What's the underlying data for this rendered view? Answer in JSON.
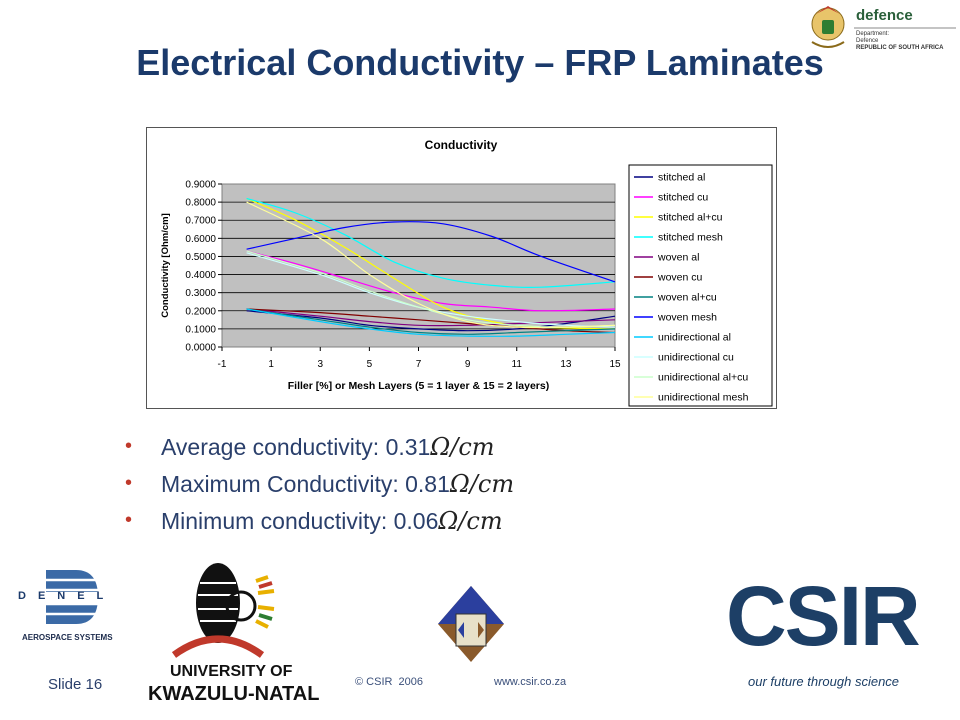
{
  "slide": {
    "title": "Electrical Conductivity – FRP Laminates",
    "bullets": [
      {
        "text": "Average conductivity: 0.31",
        "unit": "Ω/cm"
      },
      {
        "text": "Maximum Conductivity: 0.81",
        "unit": "Ω/cm"
      },
      {
        "text": "Minimum conductivity: 0.06",
        "unit": "Ω/cm"
      }
    ],
    "slide_number": "Slide 16",
    "copyright": "© CSIR  2006",
    "website": "www.csir.co.za"
  },
  "logos": {
    "defence": {
      "name": "defence",
      "line1": "Department:",
      "line2": "Defence",
      "line3": "REPUBLIC OF SOUTH AFRICA"
    },
    "denel": {
      "name": "DENEL",
      "sub": "AEROSPACE SYSTEMS"
    },
    "ukzn": {
      "line1": "UNIVERSITY OF",
      "line2": "KWAZULU-NATAL"
    },
    "csir": {
      "name": "CSIR",
      "tagline": "our future through science"
    }
  },
  "colors": {
    "title": "#1b3a6b",
    "bullet_text": "#2a3f6b",
    "bullet_dot": "#c0392b",
    "plot_bg": "#c0c0c0",
    "csir_blue": "#1d3f66"
  },
  "chart_data": {
    "type": "line",
    "title": "Conductivity",
    "xlabel": "Filler [%] or Mesh Layers (5 = 1 layer & 15 = 2 layers)",
    "ylabel": "Conductivity [Ohm/cm]",
    "xlim": [
      -1,
      15
    ],
    "ylim": [
      0,
      0.9
    ],
    "x_ticks": [
      "-1",
      "1",
      "3",
      "5",
      "7",
      "9",
      "11",
      "13",
      "15"
    ],
    "y_ticks": [
      "0.0000",
      "0.1000",
      "0.2000",
      "0.3000",
      "0.4000",
      "0.5000",
      "0.6000",
      "0.7000",
      "0.8000",
      "0.9000"
    ],
    "grid": "horizontal",
    "legend_position": "right",
    "series": [
      {
        "name": "stitched al",
        "color": "#000080",
        "x": [
          0,
          3,
          5,
          7,
          9,
          11,
          13,
          15
        ],
        "y": [
          0.2,
          0.16,
          0.12,
          0.1,
          0.09,
          0.1,
          0.13,
          0.17
        ]
      },
      {
        "name": "stitched cu",
        "color": "#ff00ff",
        "x": [
          0,
          2,
          4,
          6,
          8,
          10,
          12,
          15
        ],
        "y": [
          0.53,
          0.46,
          0.38,
          0.3,
          0.24,
          0.22,
          0.2,
          0.21
        ]
      },
      {
        "name": "stitched al+cu",
        "color": "#ffff00",
        "x": [
          0,
          2,
          4,
          6,
          8,
          10,
          12,
          15
        ],
        "y": [
          0.82,
          0.7,
          0.55,
          0.38,
          0.22,
          0.14,
          0.11,
          0.1
        ]
      },
      {
        "name": "stitched mesh",
        "color": "#00ffff",
        "x": [
          0,
          2,
          4,
          6,
          8,
          10,
          12,
          15
        ],
        "y": [
          0.82,
          0.74,
          0.62,
          0.47,
          0.38,
          0.34,
          0.33,
          0.36
        ]
      },
      {
        "name": "woven al",
        "color": "#800080",
        "x": [
          0,
          3,
          5,
          7,
          9,
          11,
          13,
          15
        ],
        "y": [
          0.21,
          0.17,
          0.14,
          0.12,
          0.12,
          0.13,
          0.14,
          0.15
        ]
      },
      {
        "name": "woven cu",
        "color": "#800000",
        "x": [
          0,
          3,
          5,
          7,
          9,
          11,
          13,
          15
        ],
        "y": [
          0.21,
          0.19,
          0.17,
          0.15,
          0.13,
          0.11,
          0.09,
          0.08
        ]
      },
      {
        "name": "woven al+cu",
        "color": "#008080",
        "x": [
          0,
          3,
          5,
          7,
          9,
          11,
          13,
          15
        ],
        "y": [
          0.21,
          0.15,
          0.11,
          0.08,
          0.07,
          0.08,
          0.09,
          0.1
        ]
      },
      {
        "name": "woven mesh",
        "color": "#0000ff",
        "x": [
          0,
          2,
          4,
          6,
          8,
          10,
          12,
          15
        ],
        "y": [
          0.54,
          0.6,
          0.66,
          0.69,
          0.68,
          0.61,
          0.5,
          0.36
        ]
      },
      {
        "name": "unidirectional al",
        "color": "#00ccff",
        "x": [
          0,
          3,
          5,
          7,
          9,
          11,
          13,
          15
        ],
        "y": [
          0.21,
          0.14,
          0.1,
          0.07,
          0.06,
          0.06,
          0.07,
          0.08
        ]
      },
      {
        "name": "unidirectional cu",
        "color": "#ccffff",
        "x": [
          0,
          3,
          5,
          7,
          9,
          11,
          13,
          15
        ],
        "y": [
          0.52,
          0.4,
          0.3,
          0.22,
          0.17,
          0.14,
          0.12,
          0.11
        ]
      },
      {
        "name": "unidirectional al+cu",
        "color": "#ccffcc",
        "x": [
          0,
          3,
          5,
          7,
          9,
          11,
          13,
          15
        ],
        "y": [
          0.53,
          0.41,
          0.31,
          0.22,
          0.15,
          0.12,
          0.11,
          0.12
        ]
      },
      {
        "name": "unidirectional mesh",
        "color": "#ffff99",
        "x": [
          0,
          3,
          5,
          7,
          9,
          11,
          13,
          15
        ],
        "y": [
          0.8,
          0.6,
          0.4,
          0.24,
          0.14,
          0.11,
          0.11,
          0.12
        ]
      }
    ]
  }
}
